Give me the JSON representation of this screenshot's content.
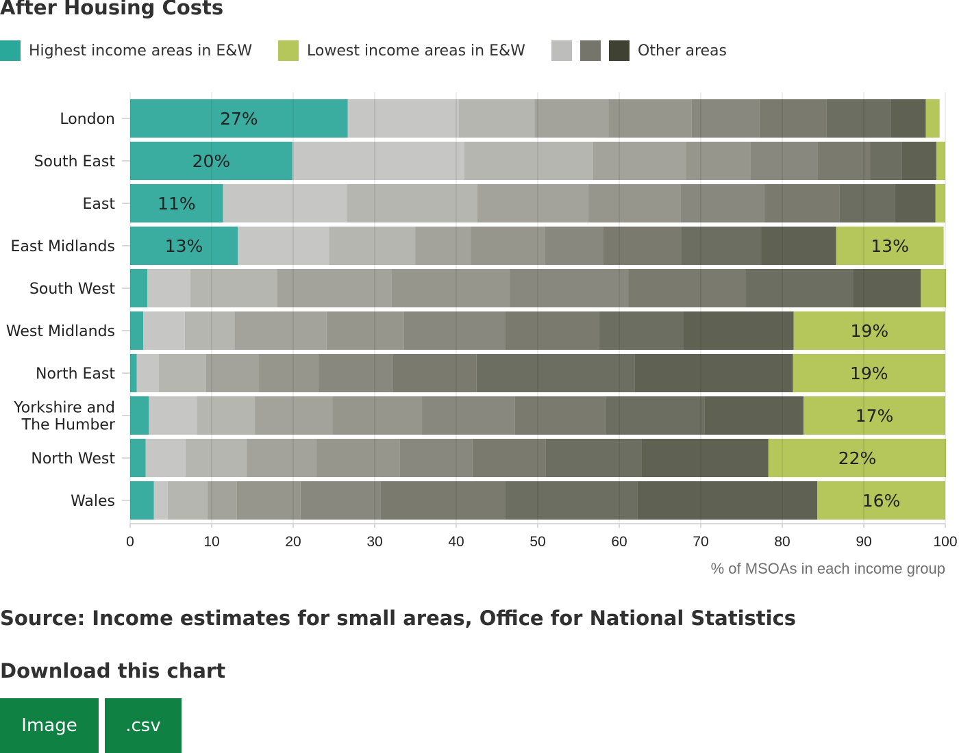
{
  "page": {
    "title": "After Housing Costs",
    "source": "Source: Income estimates for small areas, Office for National Statistics",
    "download_heading": "Download this chart",
    "buttons": {
      "image": "Image",
      "csv": ".csv"
    }
  },
  "legend": [
    {
      "label": "Highest income areas in E&W",
      "colors": [
        "#2aa99a"
      ]
    },
    {
      "label": "Lowest income areas in E&W",
      "colors": [
        "#b5c65a"
      ]
    },
    {
      "label": "Other areas",
      "colors": [
        "#bdbdbb",
        "#75756c",
        "#3f4233"
      ]
    }
  ],
  "chart_data": {
    "type": "bar",
    "orientation": "horizontal",
    "stacked": true,
    "xlabel": "% of MSOAs in each income group",
    "xlim": [
      0,
      100
    ],
    "xticks": [
      0,
      10,
      20,
      30,
      40,
      50,
      60,
      70,
      80,
      90,
      100
    ],
    "grid": true,
    "legend_position": "top-left",
    "categories": [
      "London",
      "South East",
      "East",
      "East Midlands",
      "South West",
      "West Midlands",
      "North East",
      "Yorkshire and The Humber",
      "North West",
      "Wales"
    ],
    "category_label_lines": [
      [
        "London"
      ],
      [
        "South East"
      ],
      [
        "East"
      ],
      [
        "East Midlands"
      ],
      [
        "South West"
      ],
      [
        "West Midlands"
      ],
      [
        "North East"
      ],
      [
        "Yorkshire and",
        "The Humber"
      ],
      [
        "North West"
      ],
      [
        "Wales"
      ]
    ],
    "series_colors": [
      "#3aada0",
      "#c6c6c5",
      "#b6b6b0",
      "#a3a39c",
      "#96968c",
      "#88887e",
      "#7a7a6f",
      "#6c6e62",
      "#5f6152",
      "#b5c65a"
    ],
    "rows": [
      [
        26.7,
        13.6,
        9.3,
        9.1,
        10.2,
        8.3,
        8.2,
        7.9,
        4.3,
        1.7
      ],
      [
        19.9,
        21.1,
        15.8,
        11.4,
        7.9,
        8.2,
        6.5,
        3.9,
        4.2,
        1.1
      ],
      [
        11.4,
        15.2,
        16.0,
        13.6,
        11.3,
        10.3,
        9.2,
        6.8,
        5.0,
        1.2
      ],
      [
        13.2,
        11.2,
        10.6,
        6.8,
        9.1,
        7.1,
        9.6,
        9.8,
        9.2,
        13.2
      ],
      [
        2.1,
        5.3,
        10.6,
        14.1,
        14.5,
        14.5,
        14.4,
        13.2,
        8.3,
        3.1
      ],
      [
        1.6,
        5.1,
        6.1,
        11.3,
        9.5,
        12.4,
        11.5,
        10.4,
        13.5,
        18.6
      ],
      [
        0.8,
        2.7,
        5.8,
        6.5,
        7.3,
        9.1,
        10.3,
        19.4,
        19.4,
        18.7
      ],
      [
        2.3,
        5.9,
        7.1,
        9.5,
        11.0,
        11.4,
        11.2,
        12.1,
        12.1,
        17.4
      ],
      [
        1.9,
        4.9,
        7.5,
        8.6,
        10.2,
        8.9,
        9.0,
        11.7,
        15.6,
        21.8
      ],
      [
        2.9,
        1.7,
        4.9,
        3.6,
        7.8,
        9.8,
        15.3,
        16.2,
        22.1,
        15.7
      ]
    ],
    "data_labels": [
      {
        "row": 0,
        "segment": 0,
        "text": "27%"
      },
      {
        "row": 1,
        "segment": 0,
        "text": "20%"
      },
      {
        "row": 2,
        "segment": 0,
        "text": "11%"
      },
      {
        "row": 3,
        "segment": 0,
        "text": "13%"
      },
      {
        "row": 3,
        "segment": 9,
        "text": "13%"
      },
      {
        "row": 5,
        "segment": 9,
        "text": "19%"
      },
      {
        "row": 6,
        "segment": 9,
        "text": "19%"
      },
      {
        "row": 7,
        "segment": 9,
        "text": "17%"
      },
      {
        "row": 8,
        "segment": 9,
        "text": "22%"
      },
      {
        "row": 9,
        "segment": 9,
        "text": "16%"
      }
    ]
  }
}
